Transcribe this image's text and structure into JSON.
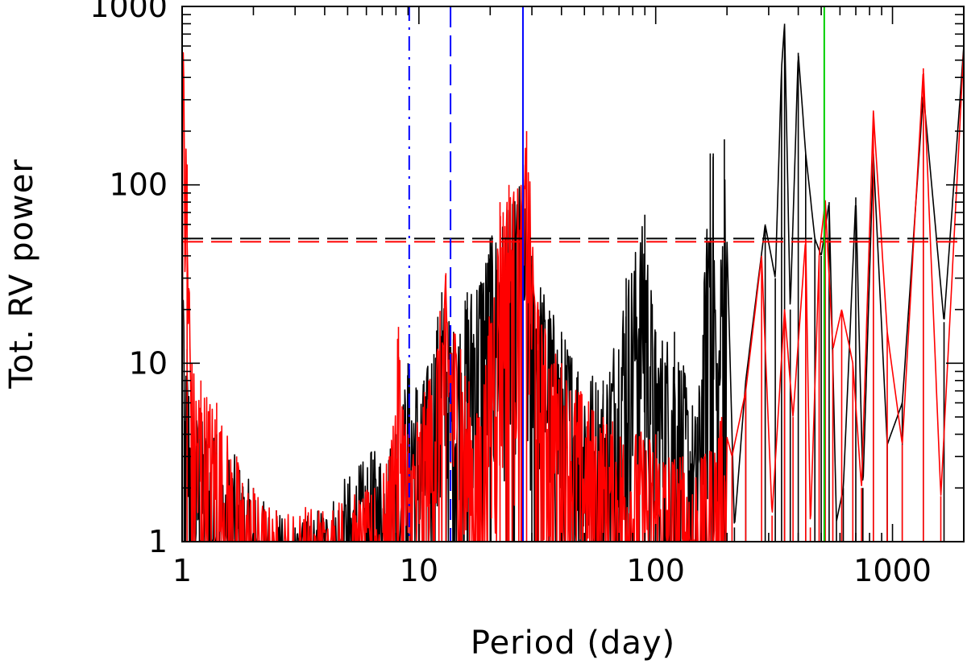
{
  "chart_data": {
    "type": "line",
    "title": "",
    "xlabel": "Period (day)",
    "ylabel": "Tot. RV power",
    "x_scale": "log",
    "y_scale": "log",
    "xlim": [
      1,
      2000
    ],
    "ylim": [
      1,
      1000
    ],
    "x_ticks": [
      {
        "value": 1,
        "label": "1"
      },
      {
        "value": 10,
        "label": "10"
      },
      {
        "value": 100,
        "label": "100"
      },
      {
        "value": 1000,
        "label": "1000"
      }
    ],
    "y_ticks": [
      {
        "value": 1,
        "label": "1"
      },
      {
        "value": 10,
        "label": "10"
      },
      {
        "value": 100,
        "label": "100"
      },
      {
        "value": 1000,
        "label": "1000"
      }
    ],
    "grid": false,
    "legend": "none",
    "series": [
      {
        "color": "#000000",
        "envelope_points": [
          [
            1.0,
            400
          ],
          [
            1.02,
            8
          ],
          [
            1.05,
            12
          ],
          [
            1.1,
            6
          ],
          [
            1.2,
            5
          ],
          [
            1.4,
            4
          ],
          [
            1.7,
            3
          ],
          [
            2.0,
            2
          ],
          [
            2.5,
            1.5
          ],
          [
            3.0,
            1.2
          ],
          [
            6.3,
            3.2
          ],
          [
            8.0,
            4
          ],
          [
            9.0,
            10
          ],
          [
            10.5,
            8
          ],
          [
            12.5,
            25
          ],
          [
            14.0,
            15
          ],
          [
            16.0,
            25
          ],
          [
            20.0,
            50
          ],
          [
            25.0,
            80
          ],
          [
            27.5,
            120
          ],
          [
            30.0,
            40
          ],
          [
            40.0,
            15
          ],
          [
            60.0,
            8
          ],
          [
            75.0,
            30
          ],
          [
            90.0,
            68
          ],
          [
            100.0,
            15
          ],
          [
            120.0,
            15
          ],
          [
            150.0,
            5
          ],
          [
            170.0,
            150
          ],
          [
            175.0,
            150
          ],
          [
            182.0,
            10
          ],
          [
            195.0,
            180
          ],
          [
            215.0,
            1.2
          ],
          [
            240.0,
            8
          ],
          [
            290.0,
            60
          ],
          [
            320.0,
            30
          ],
          [
            340.0,
            450
          ],
          [
            350.0,
            800
          ],
          [
            370.0,
            20
          ],
          [
            400.0,
            550
          ],
          [
            430.0,
            150
          ],
          [
            470.0,
            50
          ],
          [
            500.0,
            40
          ],
          [
            540.0,
            80
          ],
          [
            580.0,
            1.3
          ],
          [
            620.0,
            2
          ],
          [
            700.0,
            85
          ],
          [
            750.0,
            2
          ],
          [
            830.0,
            150
          ],
          [
            950.0,
            3.5
          ],
          [
            1100.0,
            6
          ],
          [
            1350.0,
            330
          ],
          [
            1650.0,
            17
          ],
          [
            2000.0,
            600
          ]
        ]
      },
      {
        "color": "#ff0000",
        "envelope_points": [
          [
            1.0,
            1000
          ],
          [
            1.05,
            130
          ],
          [
            1.1,
            10
          ],
          [
            1.2,
            8
          ],
          [
            1.4,
            6
          ],
          [
            1.7,
            3
          ],
          [
            2.0,
            2
          ],
          [
            2.5,
            1.5
          ],
          [
            6.5,
            2
          ],
          [
            7.5,
            3
          ],
          [
            8.2,
            16
          ],
          [
            9.0,
            4
          ],
          [
            11.0,
            8
          ],
          [
            13.0,
            32
          ],
          [
            15.0,
            12
          ],
          [
            18.0,
            5
          ],
          [
            22.0,
            80
          ],
          [
            24.0,
            100
          ],
          [
            27.0,
            100
          ],
          [
            28.5,
            200
          ],
          [
            32.0,
            20
          ],
          [
            40.0,
            10
          ],
          [
            60.0,
            5
          ],
          [
            100.0,
            4
          ],
          [
            130.0,
            3
          ],
          [
            160.0,
            3
          ],
          [
            190.0,
            5
          ],
          [
            210.0,
            3
          ],
          [
            240.0,
            7
          ],
          [
            280.0,
            40
          ],
          [
            310.0,
            1.4
          ],
          [
            350.0,
            20
          ],
          [
            380.0,
            5
          ],
          [
            430.0,
            50
          ],
          [
            450.0,
            1.2
          ],
          [
            490.0,
            40
          ],
          [
            520.0,
            82
          ],
          [
            560.0,
            12
          ],
          [
            610.0,
            20
          ],
          [
            680.0,
            10
          ],
          [
            740.0,
            2
          ],
          [
            830.0,
            260
          ],
          [
            950.0,
            15
          ],
          [
            1100.0,
            3.5
          ],
          [
            1350.0,
            450
          ],
          [
            1600.0,
            1.8
          ],
          [
            2000.0,
            580
          ]
        ]
      }
    ],
    "reference_lines": [
      {
        "orientation": "horizontal",
        "y": 50,
        "color": "#000000",
        "style": "dashed"
      },
      {
        "orientation": "horizontal",
        "y": 48,
        "color": "#ff0000",
        "style": "dashed"
      },
      {
        "orientation": "vertical",
        "x": 9.1,
        "color": "#0000ff",
        "style": "dash-dot"
      },
      {
        "orientation": "vertical",
        "x": 13.6,
        "color": "#0000ff",
        "style": "dashed"
      },
      {
        "orientation": "vertical",
        "x": 27.5,
        "color": "#0000ff",
        "style": "solid"
      },
      {
        "orientation": "vertical",
        "x": 515,
        "color": "#00d000",
        "style": "solid"
      }
    ]
  }
}
